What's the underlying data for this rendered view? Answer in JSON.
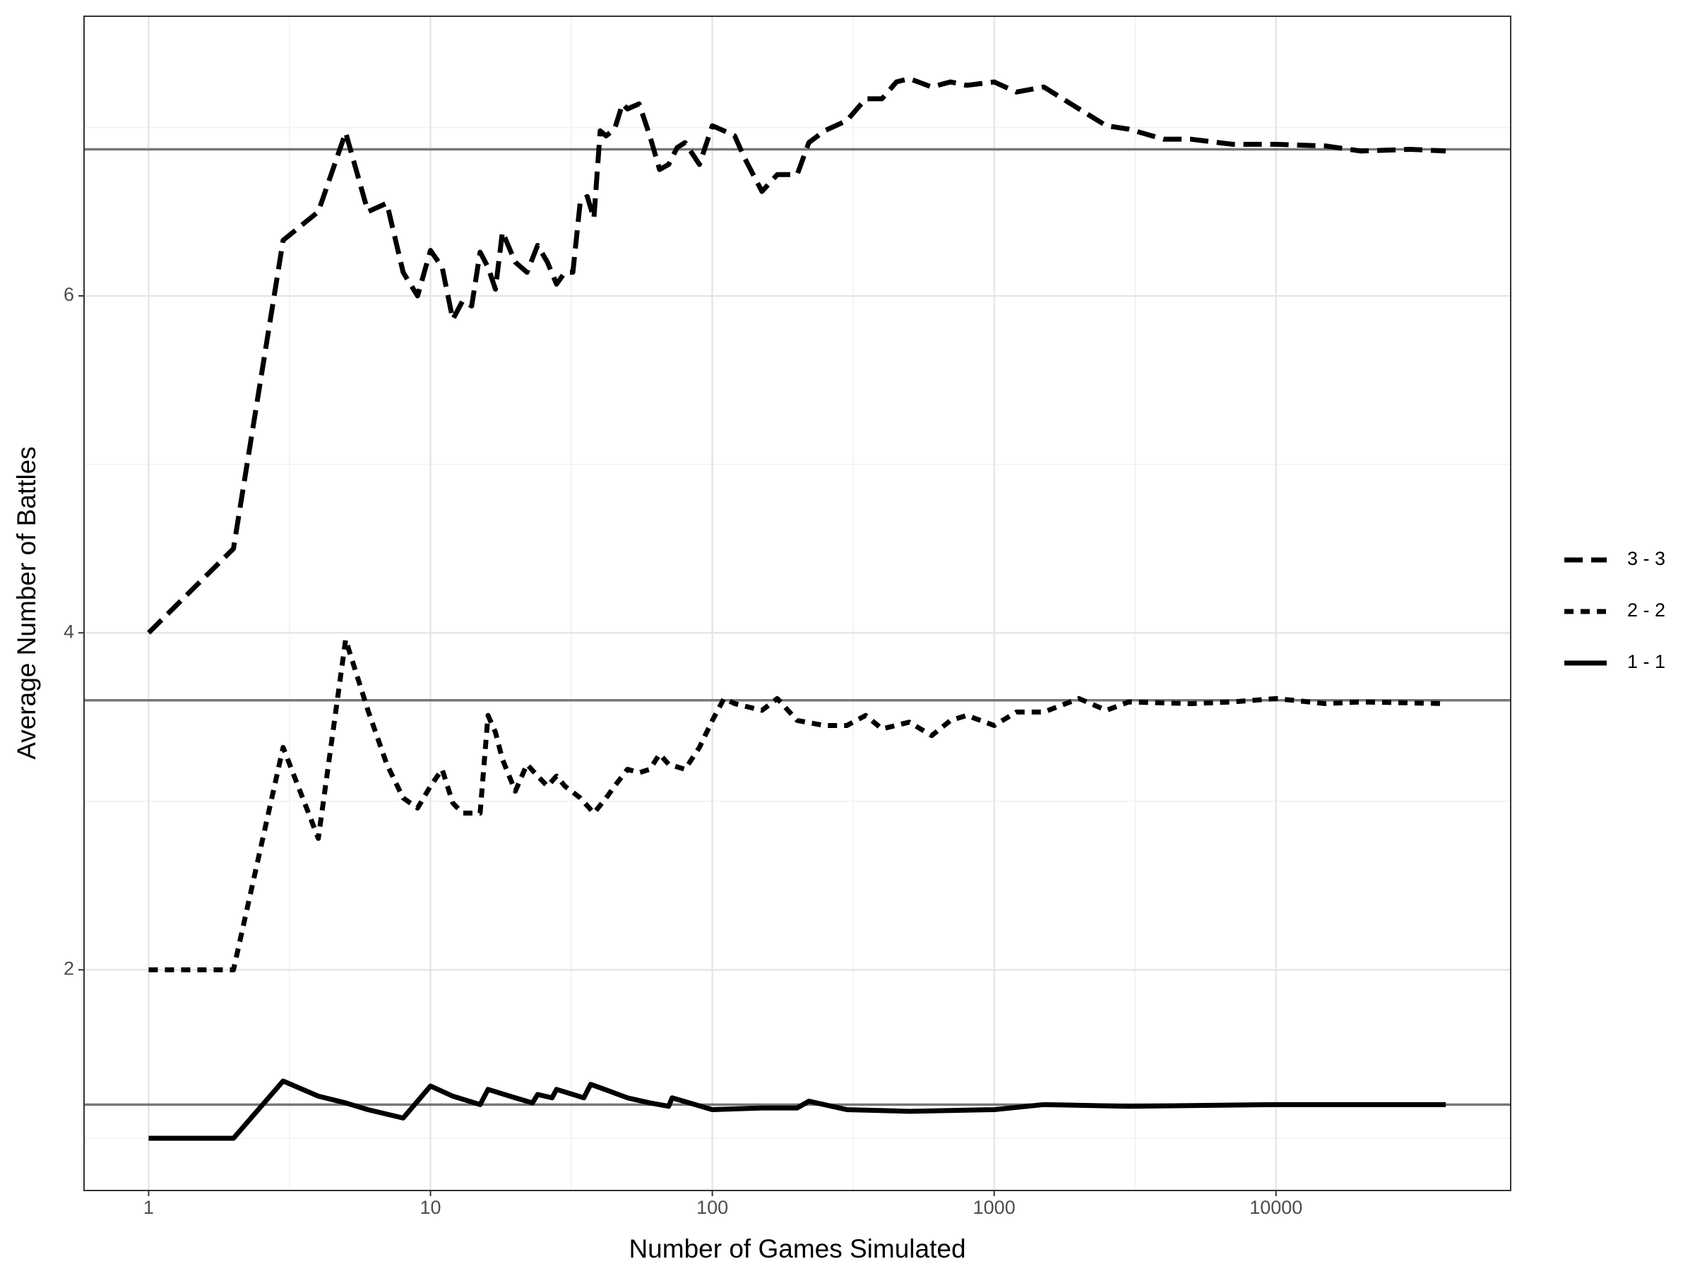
{
  "chart_data": {
    "type": "line",
    "x_label": "Number of Games Simulated",
    "y_label": "Average Number of Battles",
    "xlog": true,
    "xlim": [
      0.59,
      68000
    ],
    "ylim": [
      0.69,
      7.66
    ],
    "xticks": [
      1,
      10,
      100,
      1000,
      10000
    ],
    "yticks": [
      2,
      4,
      6
    ],
    "grid": true,
    "legend": "right",
    "reference_lines": [
      6.87,
      3.6,
      1.2
    ],
    "reference_color": "#777777",
    "series": [
      {
        "name": "3 - 3",
        "color": "#000000",
        "linetype": "longdash",
        "x": [
          1,
          2,
          3,
          4,
          5,
          6,
          7,
          8,
          9,
          10,
          11,
          12,
          13,
          14,
          15,
          16,
          17,
          18,
          20,
          22,
          24,
          26,
          28,
          30,
          32,
          34,
          36,
          38,
          40,
          42,
          45,
          48,
          50,
          55,
          60,
          65,
          70,
          75,
          80,
          90,
          100,
          110,
          120,
          130,
          150,
          170,
          200,
          220,
          250,
          300,
          350,
          400,
          450,
          500,
          600,
          700,
          800,
          1000,
          1200,
          1500,
          2000,
          2500,
          3000,
          4000,
          5000,
          7000,
          10000,
          15000,
          20000,
          30000,
          40000
        ],
        "values": [
          4.0,
          4.5,
          6.33,
          6.5,
          6.97,
          6.5,
          6.55,
          6.14,
          6.0,
          6.27,
          6.17,
          5.86,
          5.97,
          5.94,
          6.26,
          6.17,
          6.04,
          6.38,
          6.2,
          6.14,
          6.3,
          6.2,
          6.07,
          6.14,
          6.14,
          6.56,
          6.59,
          6.46,
          6.98,
          6.95,
          6.99,
          7.14,
          7.11,
          7.14,
          6.95,
          6.75,
          6.78,
          6.88,
          6.91,
          6.78,
          7.01,
          6.98,
          6.95,
          6.82,
          6.62,
          6.72,
          6.72,
          6.91,
          6.98,
          7.04,
          7.17,
          7.17,
          7.27,
          7.29,
          7.24,
          7.27,
          7.25,
          7.27,
          7.21,
          7.24,
          7.11,
          7.01,
          6.99,
          6.93,
          6.93,
          6.9,
          6.9,
          6.89,
          6.86,
          6.87,
          6.86
        ]
      },
      {
        "name": "2 - 2",
        "color": "#000000",
        "linetype": "dashed",
        "x": [
          1,
          2,
          3,
          4,
          5,
          6,
          7,
          8,
          9,
          10,
          11,
          12,
          13,
          14,
          15,
          16,
          17,
          18,
          20,
          22,
          24,
          26,
          28,
          30,
          34,
          38,
          42,
          45,
          50,
          55,
          60,
          65,
          70,
          80,
          90,
          100,
          110,
          120,
          150,
          170,
          200,
          250,
          300,
          350,
          400,
          500,
          600,
          700,
          800,
          1000,
          1200,
          1500,
          2000,
          2500,
          3000,
          5000,
          7000,
          10000,
          15000,
          20000,
          40000
        ],
        "values": [
          2.0,
          2.0,
          3.32,
          2.78,
          3.96,
          3.54,
          3.22,
          3.02,
          2.96,
          3.09,
          3.19,
          2.99,
          2.93,
          2.93,
          2.93,
          3.51,
          3.41,
          3.25,
          3.06,
          3.22,
          3.15,
          3.09,
          3.15,
          3.09,
          3.02,
          2.93,
          3.02,
          3.09,
          3.19,
          3.17,
          3.19,
          3.28,
          3.22,
          3.19,
          3.32,
          3.48,
          3.61,
          3.58,
          3.54,
          3.61,
          3.48,
          3.45,
          3.45,
          3.51,
          3.43,
          3.47,
          3.39,
          3.48,
          3.51,
          3.45,
          3.53,
          3.53,
          3.61,
          3.54,
          3.59,
          3.58,
          3.59,
          3.61,
          3.58,
          3.59,
          3.58
        ]
      },
      {
        "name": "1 - 1",
        "color": "#000000",
        "linetype": "solid",
        "x": [
          1,
          2,
          3,
          4,
          5,
          6,
          8,
          10,
          12,
          15,
          16,
          20,
          23,
          24,
          27,
          28,
          35,
          37,
          40,
          50,
          60,
          70,
          72,
          100,
          150,
          200,
          220,
          300,
          500,
          1000,
          1500,
          3000,
          10000,
          40000
        ],
        "values": [
          1.0,
          1.0,
          1.34,
          1.25,
          1.21,
          1.17,
          1.12,
          1.31,
          1.25,
          1.2,
          1.29,
          1.24,
          1.21,
          1.26,
          1.24,
          1.29,
          1.24,
          1.32,
          1.3,
          1.24,
          1.21,
          1.19,
          1.24,
          1.17,
          1.18,
          1.18,
          1.22,
          1.17,
          1.16,
          1.17,
          1.2,
          1.19,
          1.2,
          1.2
        ]
      }
    ]
  }
}
